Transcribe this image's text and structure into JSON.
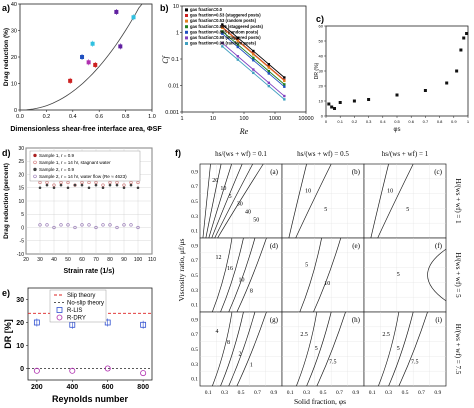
{
  "panels": {
    "a": {
      "label": "a)",
      "ylabel": "Drag reduction (%)",
      "xlabel": "Dimensionless shear-free interface area, ΦSF",
      "xticks": [
        "0.0",
        "0.2",
        "0.4",
        "0.6",
        "0.8",
        "1.0"
      ],
      "yticks": [
        "0",
        "10",
        "20",
        "30",
        "40"
      ]
    },
    "b": {
      "label": "b)",
      "ylabel": "Cf",
      "xlabel": "Re",
      "xticks": [
        "1",
        "10",
        "100",
        "1000",
        "10000"
      ],
      "yticks": [
        "10",
        "1",
        "0.1",
        "0.01",
        "0.001"
      ],
      "legend": [
        "gas fraction=0.0",
        "gas fraction=0.53 (staggered posts)",
        "gas fraction=0.53 (random posts)",
        "gas fraction=0.865 (staggered posts)",
        "gas fraction=0.865 (random posts)",
        "gas fraction=0.98 (staggered posts)",
        "gas fraction=0.98 (random posts)"
      ]
    },
    "c": {
      "label": "c)",
      "ylabel": "DR (%)",
      "xlabel": "φs",
      "xticks": [
        "0",
        "0.1",
        "0.2",
        "0.3",
        "0.4",
        "0.5",
        "0.6",
        "0.7",
        "0.8",
        "0.9",
        "1"
      ],
      "yticks": [
        "0",
        "10",
        "20",
        "30",
        "40",
        "50",
        "60"
      ]
    },
    "d": {
      "label": "d)",
      "ylabel": "Drag reduction (percent)",
      "xlabel": "Strain rate (1/s)",
      "xticks": [
        "20",
        "30",
        "40",
        "50",
        "60",
        "70",
        "80",
        "90",
        "100",
        "110"
      ],
      "yticks": [
        "-10",
        "-5",
        "0",
        "5",
        "10",
        "15",
        "20",
        "25",
        "30"
      ],
      "legend": [
        "Sample 1, r = 0.9",
        "Sample 1, r = 14 hr, stagnant water",
        "Sample 2, r = 0.9",
        "Sample 2, r = 14 hr, water flow (Re ≈ 4623)"
      ]
    },
    "e": {
      "label": "e)",
      "ylabel": "DR [%]",
      "xlabel": "Reynolds number",
      "xticks": [
        "200",
        "400",
        "600",
        "800"
      ],
      "yticks": [
        "0",
        "10",
        "20",
        "30"
      ],
      "legend": [
        "Slip theory",
        "No-slip theory",
        "R-LIS",
        "R-DRY"
      ]
    },
    "f": {
      "label": "f)",
      "col_headers": [
        "hs/(ws + wf) = 0.1",
        "hs/(ws + wf) = 0.5",
        "hs/(ws + wf) = 1"
      ],
      "row_headers": [
        "H/(ws + wf) = 1",
        "H/(ws + wf) = 5",
        "H/(ws + wf) = 7.5"
      ],
      "subpanel_labels": [
        "(a)",
        "(b)",
        "(c)",
        "(d)",
        "(e)",
        "(f)",
        "(g)",
        "(h)",
        "(i)"
      ],
      "ylabel": "Viscosity ratio, μf/μs",
      "xlabel": "Solid fraction, φs",
      "xticks": [
        "0.1",
        "0.3",
        "0.5",
        "0.7",
        "0.9"
      ],
      "yticks": [
        "0.1",
        "0.3",
        "0.5",
        "0.7",
        "0.9"
      ],
      "contour_labels": [
        [
          "20",
          "10",
          "5",
          "30",
          "40",
          "50"
        ],
        [
          "10",
          "5"
        ],
        [
          "10",
          "5"
        ],
        [
          "12",
          "16",
          "10",
          "8"
        ],
        [
          "5",
          "10"
        ],
        [
          "5"
        ],
        [
          "4",
          "8",
          "2",
          "1"
        ],
        [
          "2.5",
          "5",
          "7.5"
        ],
        [
          "2.5",
          "5",
          "7.5"
        ]
      ]
    }
  },
  "chart_data": [
    {
      "type": "scatter",
      "panel": "a",
      "x": [
        0.38,
        0.47,
        0.52,
        0.55,
        0.57,
        0.73,
        0.76,
        0.86
      ],
      "y": [
        11,
        20,
        18,
        25,
        17,
        37,
        24,
        35
      ],
      "fit_curve": "power",
      "xlim": [
        0,
        1
      ],
      "ylim": [
        0,
        40
      ]
    },
    {
      "type": "line",
      "panel": "b",
      "log_x": true,
      "log_y": true,
      "xlim": [
        1,
        10000
      ],
      "ylim": [
        0.001,
        10
      ],
      "series": [
        {
          "name": "gas fraction=0.0",
          "x": [
            20,
            2000
          ],
          "y": [
            2.0,
            0.02
          ],
          "color": "#000000"
        },
        {
          "name": "gas fraction=0.53 (staggered posts)",
          "x": [
            20,
            2000
          ],
          "y": [
            1.6,
            0.016
          ],
          "color": "#cc2020"
        },
        {
          "name": "gas fraction=0.53 (random posts)",
          "x": [
            20,
            2000
          ],
          "y": [
            1.5,
            0.015
          ],
          "color": "#e08020"
        },
        {
          "name": "gas fraction=0.865 (staggered posts)",
          "x": [
            20,
            2000
          ],
          "y": [
            1.1,
            0.011
          ],
          "color": "#208020"
        },
        {
          "name": "gas fraction=0.865 (random posts)",
          "x": [
            20,
            2000
          ],
          "y": [
            0.9,
            0.009
          ],
          "color": "#2050c0"
        },
        {
          "name": "gas fraction=0.98 (staggered posts)",
          "x": [
            20,
            2000
          ],
          "y": [
            0.4,
            0.004
          ],
          "color": "#8040c0"
        },
        {
          "name": "gas fraction=0.98 (random posts)",
          "x": [
            20,
            2000
          ],
          "y": [
            0.3,
            0.003
          ],
          "color": "#40a0c0"
        }
      ]
    },
    {
      "type": "scatter",
      "panel": "c",
      "x": [
        0.02,
        0.04,
        0.06,
        0.1,
        0.2,
        0.3,
        0.5,
        0.7,
        0.85,
        0.92,
        0.95,
        0.97,
        0.99
      ],
      "y": [
        8,
        6,
        5,
        9,
        10,
        11,
        14,
        17,
        22,
        30,
        44,
        52,
        55
      ],
      "xlim": [
        0,
        1
      ],
      "ylim": [
        0,
        60
      ]
    },
    {
      "type": "scatter",
      "panel": "d",
      "xlim": [
        20,
        110
      ],
      "ylim": [
        -10,
        30
      ],
      "series": [
        {
          "name": "Sample 1, r = 0.9",
          "x": [
            30,
            35,
            40,
            45,
            50,
            55,
            60,
            65,
            70,
            75,
            80,
            85,
            90,
            95,
            100
          ],
          "y": [
            20,
            21,
            20,
            20,
            21,
            20,
            20,
            21,
            20,
            21,
            20,
            20,
            21,
            20,
            21
          ]
        },
        {
          "name": "Sample 1, r = 14 hr, stagnant water",
          "x": [
            30,
            35,
            40,
            45,
            50,
            55,
            60,
            65,
            70,
            75,
            80,
            85,
            90,
            95,
            100
          ],
          "y": [
            17,
            17,
            16,
            17,
            17,
            16,
            17,
            17,
            17,
            16,
            17,
            17,
            16,
            17,
            17
          ]
        },
        {
          "name": "Sample 2, r = 0.9",
          "x": [
            30,
            35,
            40,
            45,
            50,
            55,
            60,
            65,
            70,
            75,
            80,
            85,
            90,
            95,
            100
          ],
          "y": [
            15,
            16,
            15,
            16,
            15,
            16,
            16,
            15,
            16,
            15,
            16,
            16,
            15,
            16,
            15
          ]
        },
        {
          "name": "Sample 2, r = 14 hr, water flow (Re ≈ 4623)",
          "x": [
            30,
            35,
            40,
            45,
            50,
            55,
            60,
            65,
            70,
            75,
            80,
            85,
            90,
            95,
            100
          ],
          "y": [
            1,
            1,
            0,
            1,
            1,
            0,
            1,
            1,
            0,
            1,
            1,
            0,
            1,
            1,
            0
          ]
        }
      ]
    },
    {
      "type": "scatter",
      "panel": "e",
      "xlim": [
        150,
        850
      ],
      "ylim": [
        -5,
        35
      ],
      "series": [
        {
          "name": "Slip theory",
          "x": [
            150,
            850
          ],
          "y": [
            24,
            24
          ]
        },
        {
          "name": "No-slip theory",
          "x": [
            150,
            850
          ],
          "y": [
            0,
            0
          ]
        },
        {
          "name": "R-LIS",
          "x": [
            200,
            400,
            600,
            800
          ],
          "y": [
            20,
            19,
            20,
            19
          ]
        },
        {
          "name": "R-DRY",
          "x": [
            200,
            400,
            600,
            800
          ],
          "y": [
            -1,
            -1,
            0,
            -2
          ]
        }
      ]
    }
  ],
  "colors": {
    "axis": "#222222",
    "grid": "#cfcfcf",
    "red": "#cc2020",
    "blue": "#2050c0",
    "magenta": "#b030b0",
    "cyan": "#30c0e0",
    "purple": "#6020a0"
  }
}
